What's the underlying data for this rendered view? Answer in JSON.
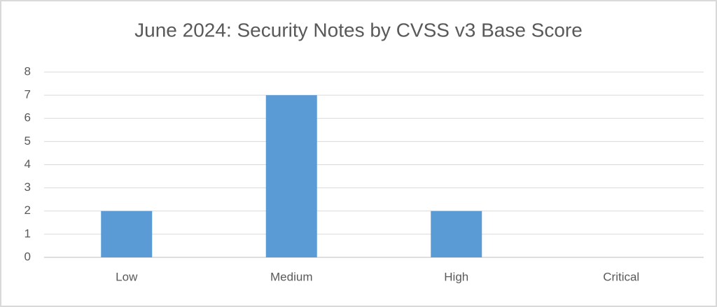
{
  "chart_data": {
    "type": "bar",
    "title": "June 2024: Security Notes by CVSS v3 Base Score",
    "categories": [
      "Low",
      "Medium",
      "High",
      "Critical"
    ],
    "values": [
      2,
      7,
      2,
      0
    ],
    "color": "#5b9bd5",
    "ylim": [
      0,
      8
    ],
    "yticks": [
      0,
      1,
      2,
      3,
      4,
      5,
      6,
      7,
      8
    ],
    "grid": true
  }
}
